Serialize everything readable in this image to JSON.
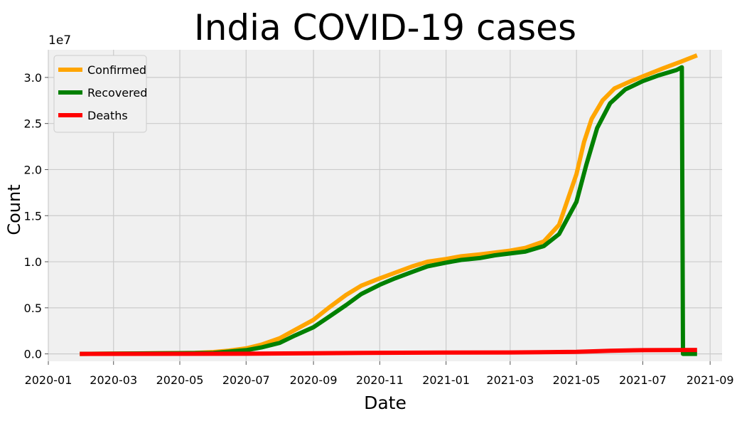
{
  "chart_data": {
    "type": "line",
    "title": "India COVID-19 cases",
    "xlabel": "Date",
    "ylabel": "Count",
    "y_multiplier_label": "1e7",
    "y_multiplier": 10000000,
    "xlim": [
      "2020-01-01",
      "2021-09-12"
    ],
    "ylim": [
      -0.08,
      3.3
    ],
    "x_ticks": [
      "2020-01",
      "2020-03",
      "2020-05",
      "2020-07",
      "2020-09",
      "2020-11",
      "2021-01",
      "2021-03",
      "2021-05",
      "2021-07",
      "2021-09"
    ],
    "y_ticks": [
      "0.0",
      "0.5",
      "1.0",
      "1.5",
      "2.0",
      "2.5",
      "3.0"
    ],
    "grid": true,
    "legend_position": "top-left",
    "series": [
      {
        "name": "Confirmed",
        "color": "#ffa500",
        "points": [
          [
            "2020-01-30",
            0
          ],
          [
            "2020-05-15",
            0.01
          ],
          [
            "2020-06-01",
            0.02
          ],
          [
            "2020-06-15",
            0.035
          ],
          [
            "2020-07-01",
            0.06
          ],
          [
            "2020-07-15",
            0.1
          ],
          [
            "2020-08-01",
            0.17
          ],
          [
            "2020-08-15",
            0.26
          ],
          [
            "2020-09-01",
            0.37
          ],
          [
            "2020-09-15",
            0.5
          ],
          [
            "2020-10-01",
            0.64
          ],
          [
            "2020-10-15",
            0.74
          ],
          [
            "2020-11-01",
            0.82
          ],
          [
            "2020-11-15",
            0.88
          ],
          [
            "2020-12-01",
            0.95
          ],
          [
            "2020-12-15",
            1.0
          ],
          [
            "2021-01-01",
            1.03
          ],
          [
            "2021-01-15",
            1.06
          ],
          [
            "2021-02-01",
            1.08
          ],
          [
            "2021-02-15",
            1.1
          ],
          [
            "2021-03-01",
            1.12
          ],
          [
            "2021-03-15",
            1.15
          ],
          [
            "2021-04-01",
            1.22
          ],
          [
            "2021-04-15",
            1.4
          ],
          [
            "2021-05-01",
            1.95
          ],
          [
            "2021-05-08",
            2.3
          ],
          [
            "2021-05-15",
            2.55
          ],
          [
            "2021-05-25",
            2.75
          ],
          [
            "2021-06-05",
            2.88
          ],
          [
            "2021-06-20",
            2.96
          ],
          [
            "2021-07-05",
            3.03
          ],
          [
            "2021-07-20",
            3.1
          ],
          [
            "2021-08-05",
            3.17
          ],
          [
            "2021-08-20",
            3.24
          ]
        ]
      },
      {
        "name": "Recovered",
        "color": "#008000",
        "points": [
          [
            "2020-01-30",
            0
          ],
          [
            "2020-06-01",
            0.01
          ],
          [
            "2020-07-01",
            0.04
          ],
          [
            "2020-07-15",
            0.07
          ],
          [
            "2020-08-01",
            0.12
          ],
          [
            "2020-08-15",
            0.2
          ],
          [
            "2020-09-01",
            0.29
          ],
          [
            "2020-09-15",
            0.4
          ],
          [
            "2020-10-01",
            0.53
          ],
          [
            "2020-10-15",
            0.65
          ],
          [
            "2020-11-01",
            0.75
          ],
          [
            "2020-11-15",
            0.82
          ],
          [
            "2020-12-01",
            0.89
          ],
          [
            "2020-12-15",
            0.95
          ],
          [
            "2021-01-01",
            0.99
          ],
          [
            "2021-01-15",
            1.02
          ],
          [
            "2021-02-01",
            1.04
          ],
          [
            "2021-02-15",
            1.07
          ],
          [
            "2021-03-01",
            1.09
          ],
          [
            "2021-03-15",
            1.11
          ],
          [
            "2021-04-01",
            1.17
          ],
          [
            "2021-04-15",
            1.3
          ],
          [
            "2021-05-01",
            1.65
          ],
          [
            "2021-05-10",
            2.05
          ],
          [
            "2021-05-20",
            2.45
          ],
          [
            "2021-06-01",
            2.72
          ],
          [
            "2021-06-15",
            2.87
          ],
          [
            "2021-07-01",
            2.96
          ],
          [
            "2021-07-15",
            3.02
          ],
          [
            "2021-08-01",
            3.08
          ],
          [
            "2021-08-06",
            3.11
          ],
          [
            "2021-08-07",
            0.0
          ],
          [
            "2021-08-20",
            0.0
          ]
        ]
      },
      {
        "name": "Deaths",
        "color": "#ff0000",
        "points": [
          [
            "2020-01-30",
            0
          ],
          [
            "2020-07-01",
            0.002
          ],
          [
            "2020-09-01",
            0.007
          ],
          [
            "2020-11-01",
            0.012
          ],
          [
            "2021-01-01",
            0.015
          ],
          [
            "2021-03-01",
            0.016
          ],
          [
            "2021-05-01",
            0.022
          ],
          [
            "2021-06-01",
            0.034
          ],
          [
            "2021-07-01",
            0.04
          ],
          [
            "2021-08-20",
            0.043
          ]
        ]
      }
    ]
  }
}
